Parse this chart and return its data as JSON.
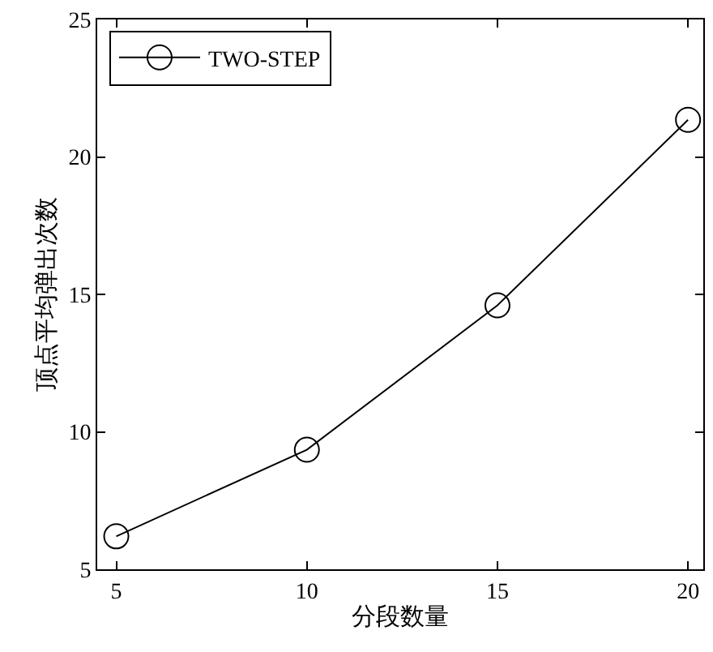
{
  "chart_data": {
    "type": "line",
    "xlabel": "分段数量",
    "ylabel": "顶点平均弹出次数",
    "x": [
      5,
      10,
      15,
      20
    ],
    "series": [
      {
        "name": "TWO-STEP",
        "color": "#000000",
        "values": [
          6.2,
          9.35,
          14.6,
          21.35
        ]
      }
    ],
    "xlim": [
      4.5,
      20.4
    ],
    "xticks": [
      5,
      10,
      15,
      20
    ],
    "ylim": [
      5,
      25
    ],
    "yticks": [
      5,
      10,
      15,
      20,
      25
    ],
    "legend": "top left",
    "marker": "circle",
    "line_style": "solid"
  }
}
